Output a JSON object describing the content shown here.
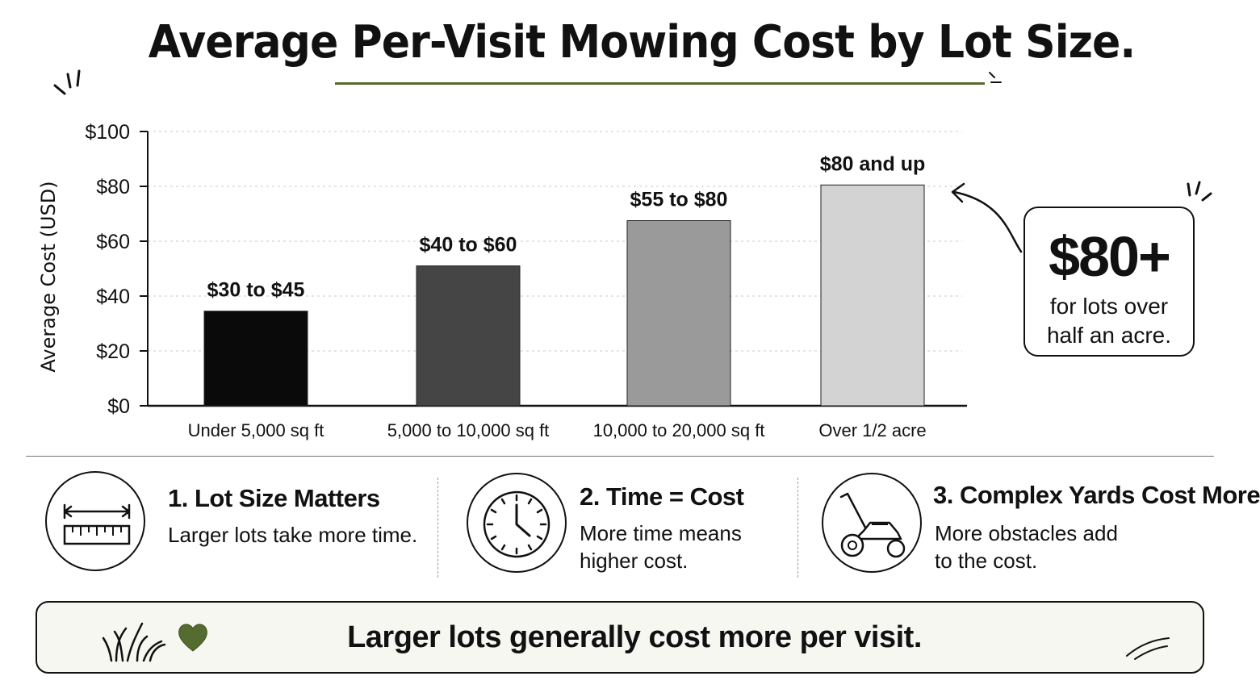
{
  "title": "Average Per-Visit Mowing Cost by Lot Size.",
  "colors": {
    "accent": "#556b2f",
    "bars": [
      "#0a0a0a",
      "#454545",
      "#9a9a9a",
      "#d3d3d3"
    ]
  },
  "chart_data": {
    "type": "bar",
    "ylabel": "Average Cost (USD)",
    "xlabel": "",
    "ylim": [
      0,
      100
    ],
    "yticks": [
      0,
      20,
      40,
      60,
      80,
      100
    ],
    "ytick_labels": [
      "$0",
      "$20",
      "$40",
      "$60",
      "$80",
      "$100"
    ],
    "grid": true,
    "categories": [
      "Under 5,000 sq ft",
      "5,000 to 10,000 sq ft",
      "10,000 to 20,000 sq ft",
      "Over 1/2 acre"
    ],
    "values": [
      34.5,
      51,
      67.5,
      80.5
    ],
    "data_labels": [
      "$30 to $45",
      "$40 to $60",
      "$55 to $80",
      "$80 and up"
    ]
  },
  "callout": {
    "value": "$80+",
    "text": "for lots over half an acre."
  },
  "factors": [
    {
      "title": "1. Lot Size Matters",
      "text": "Larger lots take more time.",
      "icon": "ruler-icon"
    },
    {
      "title": "2. Time = Cost",
      "text": "More time means higher cost.",
      "icon": "clock-icon"
    },
    {
      "title": "3. Complex Yards Cost More",
      "text": "More obstacles add to the cost.",
      "icon": "lawn-mower-icon"
    }
  ],
  "summary": "Larger lots generally cost more per visit."
}
